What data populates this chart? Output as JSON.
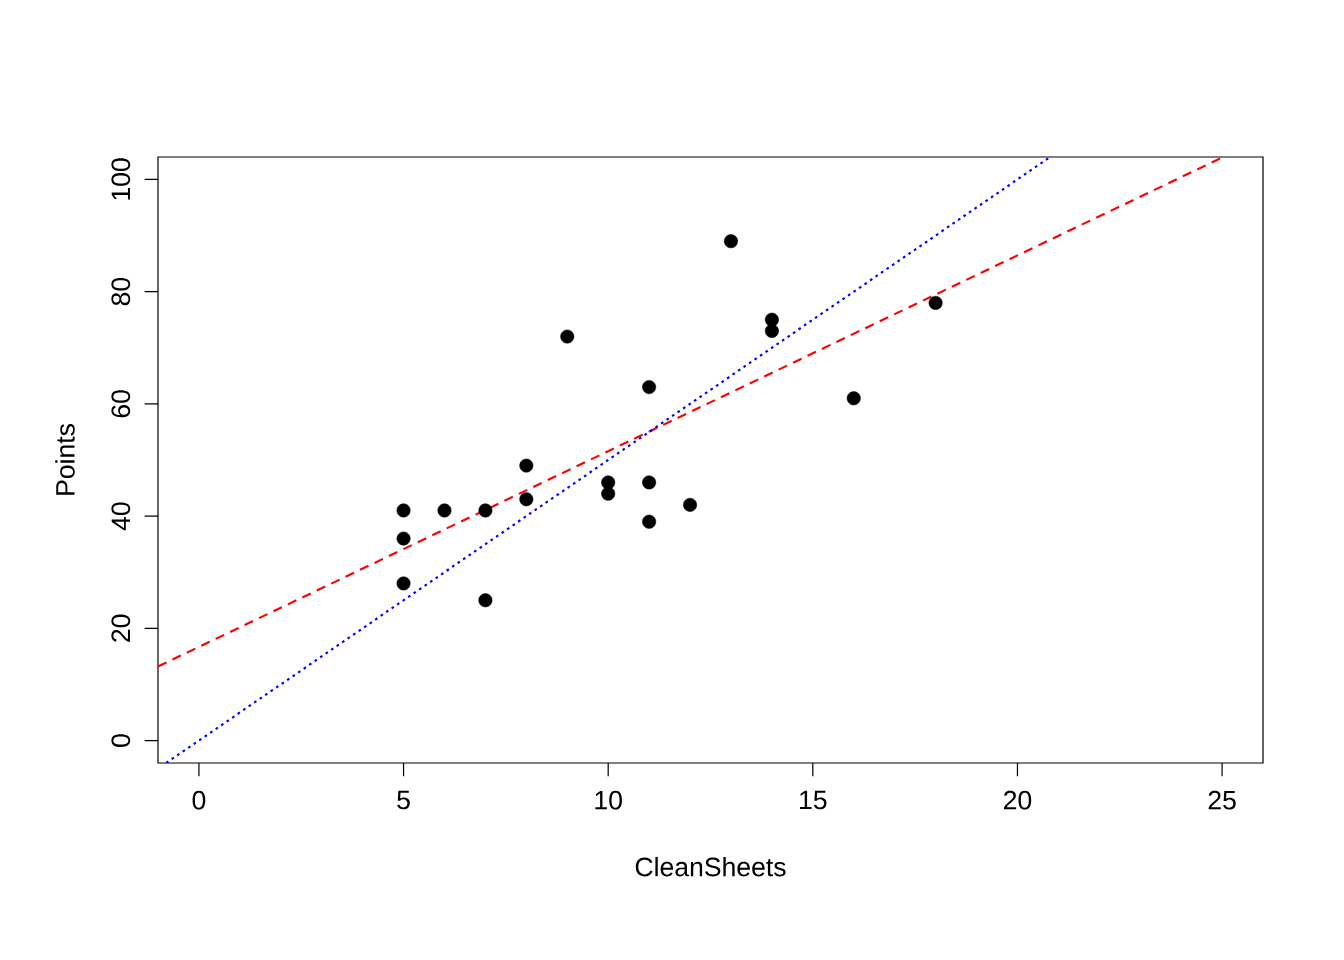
{
  "chart_data": {
    "type": "scatter",
    "xlabel": "CleanSheets",
    "ylabel": "Points",
    "xlim": [
      -1,
      26
    ],
    "ylim": [
      -4,
      104
    ],
    "xticks": [
      0,
      5,
      10,
      15,
      20,
      25
    ],
    "yticks": [
      0,
      20,
      40,
      60,
      80,
      100
    ],
    "series": [
      {
        "color": "#000000",
        "marker": "circle",
        "x": [
          5,
          5,
          5,
          6,
          7,
          7,
          8,
          8,
          9,
          10,
          10,
          11,
          11,
          11,
          12,
          13,
          14,
          14,
          16,
          18
        ],
        "values": [
          41,
          36,
          28,
          41,
          41,
          25,
          49,
          43,
          72,
          46,
          44,
          63,
          46,
          39,
          42,
          89,
          75,
          73,
          61,
          78
        ]
      },
      {
        "type": "line",
        "color": "#ff0000",
        "line_style": "dashed",
        "marker": "none",
        "x": [
          -1,
          25
        ],
        "values": [
          13.2,
          103.9
        ]
      },
      {
        "type": "line",
        "color": "#0000ff",
        "line_style": "dotted",
        "marker": "none",
        "x": [
          -0.8,
          20.8
        ],
        "values": [
          -4,
          104
        ]
      }
    ]
  }
}
